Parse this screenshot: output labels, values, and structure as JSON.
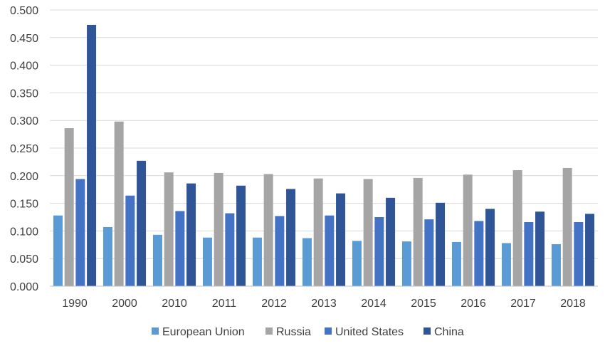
{
  "chart_data": {
    "type": "bar",
    "categories": [
      "1990",
      "2000",
      "2010",
      "2011",
      "2012",
      "2013",
      "2014",
      "2015",
      "2016",
      "2017",
      "2018"
    ],
    "series": [
      {
        "name": "European Union",
        "color": "#5B9BD5",
        "values": [
          0.128,
          0.107,
          0.093,
          0.088,
          0.088,
          0.087,
          0.082,
          0.081,
          0.08,
          0.078,
          0.076
        ]
      },
      {
        "name": "Russia",
        "color": "#A5A5A5",
        "values": [
          0.286,
          0.298,
          0.206,
          0.205,
          0.203,
          0.195,
          0.194,
          0.196,
          0.202,
          0.21,
          0.214
        ]
      },
      {
        "name": "United States",
        "color": "#4472C4",
        "values": [
          0.194,
          0.164,
          0.136,
          0.132,
          0.127,
          0.128,
          0.125,
          0.121,
          0.118,
          0.116,
          0.116
        ]
      },
      {
        "name": "China",
        "color": "#2F5597",
        "values": [
          0.473,
          0.227,
          0.186,
          0.182,
          0.176,
          0.168,
          0.16,
          0.151,
          0.14,
          0.135,
          0.131
        ]
      }
    ],
    "yticks": [
      "0.000",
      "0.050",
      "0.100",
      "0.150",
      "0.200",
      "0.250",
      "0.300",
      "0.350",
      "0.400",
      "0.450",
      "0.500"
    ],
    "ylim": [
      0,
      0.5
    ],
    "grid": true,
    "legend_position": "bottom"
  }
}
